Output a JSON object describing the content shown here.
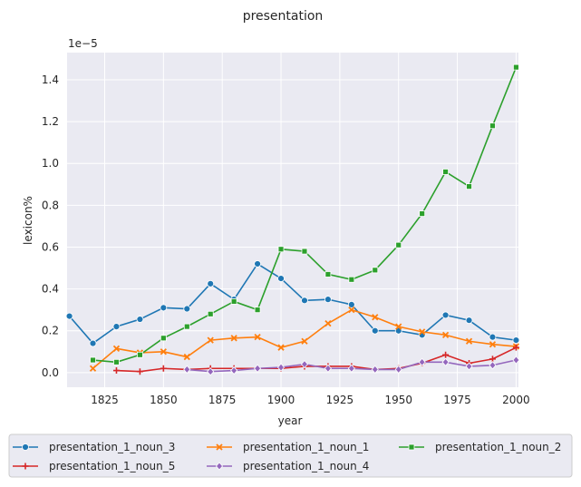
{
  "chart_data": {
    "type": "line",
    "title": "presentation",
    "xlabel": "year",
    "ylabel": "lexicon%",
    "y_multiplier_label": "1e−5",
    "xlim": [
      1809,
      2001
    ],
    "ylim": [
      -0.07,
      1.53
    ],
    "x_ticks": [
      1825,
      1850,
      1875,
      1900,
      1925,
      1950,
      1975,
      2000
    ],
    "y_ticks": [
      0.0,
      0.2,
      0.4,
      0.6,
      0.8,
      1.0,
      1.2,
      1.4
    ],
    "y_tick_labels": [
      "0.0",
      "0.2",
      "0.4",
      "0.6",
      "0.8",
      "1.0",
      "1.2",
      "1.4"
    ],
    "grid": true,
    "legend_position": "bottom-center",
    "series": [
      {
        "name": "presentation_1_noun_3",
        "color": "#1f77b4",
        "marker": "circle",
        "x": [
          1810,
          1820,
          1830,
          1840,
          1850,
          1860,
          1870,
          1880,
          1890,
          1900,
          1910,
          1920,
          1930,
          1940,
          1950,
          1960,
          1970,
          1980,
          1990,
          2000
        ],
        "y": [
          0.27,
          0.14,
          0.22,
          0.255,
          0.31,
          0.305,
          0.425,
          0.35,
          0.52,
          0.45,
          0.345,
          0.35,
          0.325,
          0.2,
          0.2,
          0.18,
          0.275,
          0.25,
          0.17,
          0.155
        ]
      },
      {
        "name": "presentation_1_noun_1",
        "color": "#ff7f0e",
        "marker": "x",
        "x": [
          1820,
          1830,
          1840,
          1850,
          1860,
          1870,
          1880,
          1890,
          1900,
          1910,
          1920,
          1930,
          1940,
          1950,
          1960,
          1970,
          1980,
          1990,
          2000
        ],
        "y": [
          0.02,
          0.115,
          0.095,
          0.1,
          0.075,
          0.155,
          0.165,
          0.17,
          0.12,
          0.15,
          0.235,
          0.3,
          0.265,
          0.22,
          0.195,
          0.18,
          0.15,
          0.135,
          0.125
        ]
      },
      {
        "name": "presentation_1_noun_2",
        "color": "#2ca02c",
        "marker": "square",
        "x": [
          1820,
          1830,
          1840,
          1850,
          1860,
          1870,
          1880,
          1890,
          1900,
          1910,
          1920,
          1930,
          1940,
          1950,
          1960,
          1970,
          1980,
          1990,
          2000
        ],
        "y": [
          0.06,
          0.05,
          0.085,
          0.165,
          0.22,
          0.28,
          0.34,
          0.3,
          0.59,
          0.58,
          0.47,
          0.445,
          0.49,
          0.61,
          0.76,
          0.96,
          0.89,
          1.18,
          1.46
        ]
      },
      {
        "name": "presentation_1_noun_5",
        "color": "#d62728",
        "marker": "plus",
        "x": [
          1830,
          1840,
          1850,
          1860,
          1870,
          1880,
          1890,
          1900,
          1910,
          1920,
          1930,
          1940,
          1950,
          1960,
          1970,
          1980,
          1990,
          2000
        ],
        "y": [
          0.01,
          0.005,
          0.02,
          0.015,
          0.02,
          0.02,
          0.02,
          0.02,
          0.03,
          0.03,
          0.03,
          0.015,
          0.02,
          0.045,
          0.085,
          0.045,
          0.065,
          0.12
        ]
      },
      {
        "name": "presentation_1_noun_4",
        "color": "#9467bd",
        "marker": "diamond",
        "x": [
          1860,
          1870,
          1880,
          1890,
          1900,
          1910,
          1920,
          1930,
          1940,
          1950,
          1960,
          1970,
          1980,
          1990,
          2000
        ],
        "y": [
          0.015,
          0.005,
          0.01,
          0.02,
          0.025,
          0.04,
          0.02,
          0.02,
          0.015,
          0.015,
          0.05,
          0.05,
          0.03,
          0.035,
          0.06
        ]
      }
    ]
  }
}
